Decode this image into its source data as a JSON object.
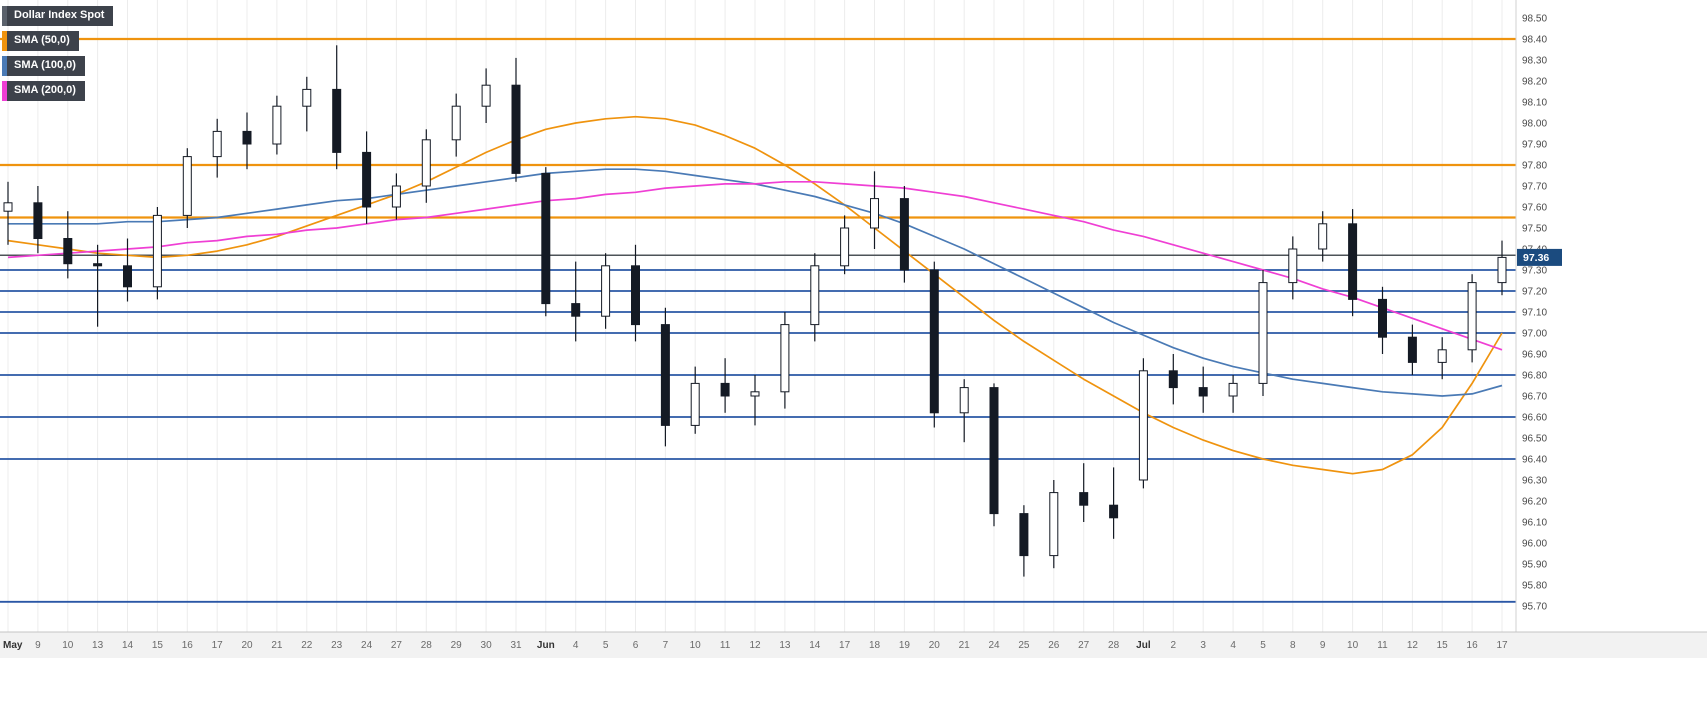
{
  "legend": {
    "instrument": {
      "label": "Dollar Index Spot",
      "color": "#5a616b"
    },
    "items": [
      {
        "label": "SMA (50,0)",
        "color": "#ef930e"
      },
      {
        "label": "SMA (100,0)",
        "color": "#4a7ab5"
      },
      {
        "label": "SMA (200,0)",
        "color": "#ef3fd4"
      }
    ]
  },
  "chart_data": {
    "type": "candlestick",
    "title": "Dollar Index Spot",
    "legend_position": "top-left",
    "grid": "vertical-only",
    "ylim": [
      95.57,
      98.59
    ],
    "current": {
      "price": "97.36",
      "line_price": 97.37
    },
    "colors": {
      "grid": "#ececec",
      "candle": "#141a24",
      "candle_up_fill": "#ffffff",
      "level_blue": "#2a57a5",
      "level_orange": "#ef930e",
      "current_line": "#4d5358",
      "badge_bg": "#1b4b7f",
      "badge_text": "#ffffff",
      "axis_text": "#4a4a4a"
    },
    "y_axis": {
      "labels": [
        "98.50",
        "98.40",
        "98.30",
        "98.20",
        "98.10",
        "98.00",
        "97.90",
        "97.80",
        "97.70",
        "97.60",
        "97.50",
        "97.40",
        "97.30",
        "97.20",
        "97.10",
        "97.00",
        "96.90",
        "96.80",
        "96.70",
        "96.60",
        "96.50",
        "96.40",
        "96.30",
        "96.20",
        "96.10",
        "96.00",
        "95.90",
        "95.80",
        "95.70"
      ]
    },
    "x_labels": [
      "May",
      "9",
      "10",
      "13",
      "14",
      "15",
      "16",
      "17",
      "20",
      "21",
      "22",
      "23",
      "24",
      "27",
      "28",
      "29",
      "30",
      "31",
      "Jun",
      "4",
      "5",
      "6",
      "7",
      "10",
      "11",
      "12",
      "13",
      "14",
      "17",
      "18",
      "19",
      "20",
      "21",
      "24",
      "25",
      "26",
      "27",
      "28",
      "Jul",
      "2",
      "3",
      "4",
      "5",
      "8",
      "9",
      "10",
      "11",
      "12",
      "15",
      "16",
      "17"
    ],
    "h_lines": [
      {
        "price": 98.4,
        "color": "#ef930e",
        "width": 2.2
      },
      {
        "price": 97.8,
        "color": "#ef930e",
        "width": 2.2
      },
      {
        "price": 97.55,
        "color": "#ef930e",
        "width": 2.2
      },
      {
        "price": 97.37,
        "color": "#4d5358",
        "width": 1.5
      },
      {
        "price": 97.3,
        "color": "#2a57a5",
        "width": 1.8
      },
      {
        "price": 97.2,
        "color": "#2a57a5",
        "width": 1.8
      },
      {
        "price": 97.1,
        "color": "#2a57a5",
        "width": 1.8
      },
      {
        "price": 97.0,
        "color": "#2a57a5",
        "width": 1.8
      },
      {
        "price": 96.8,
        "color": "#2a57a5",
        "width": 1.8
      },
      {
        "price": 96.6,
        "color": "#2a57a5",
        "width": 1.8
      },
      {
        "price": 96.4,
        "color": "#2a57a5",
        "width": 1.8
      },
      {
        "price": 95.72,
        "color": "#2a57a5",
        "width": 1.8
      }
    ],
    "candles": [
      {
        "d": "May 8",
        "o": 97.58,
        "h": 97.72,
        "l": 97.42,
        "c": 97.62
      },
      {
        "d": "May 9",
        "o": 97.62,
        "h": 97.7,
        "l": 97.38,
        "c": 97.45
      },
      {
        "d": "May 10",
        "o": 97.45,
        "h": 97.58,
        "l": 97.26,
        "c": 97.33
      },
      {
        "d": "May 13",
        "o": 97.33,
        "h": 97.42,
        "l": 97.03,
        "c": 97.32
      },
      {
        "d": "May 14",
        "o": 97.32,
        "h": 97.45,
        "l": 97.15,
        "c": 97.22
      },
      {
        "d": "May 15",
        "o": 97.22,
        "h": 97.6,
        "l": 97.16,
        "c": 97.56
      },
      {
        "d": "May 16",
        "o": 97.56,
        "h": 97.88,
        "l": 97.5,
        "c": 97.84
      },
      {
        "d": "May 17",
        "o": 97.84,
        "h": 98.02,
        "l": 97.74,
        "c": 97.96
      },
      {
        "d": "May 20",
        "o": 97.96,
        "h": 98.05,
        "l": 97.78,
        "c": 97.9
      },
      {
        "d": "May 21",
        "o": 97.9,
        "h": 98.13,
        "l": 97.85,
        "c": 98.08
      },
      {
        "d": "May 22",
        "o": 98.08,
        "h": 98.22,
        "l": 97.96,
        "c": 98.16
      },
      {
        "d": "May 23",
        "o": 98.16,
        "h": 98.37,
        "l": 97.78,
        "c": 97.86
      },
      {
        "d": "May 24",
        "o": 97.86,
        "h": 97.96,
        "l": 97.52,
        "c": 97.6
      },
      {
        "d": "May 27",
        "o": 97.6,
        "h": 97.76,
        "l": 97.54,
        "c": 97.7
      },
      {
        "d": "May 28",
        "o": 97.7,
        "h": 97.97,
        "l": 97.62,
        "c": 97.92
      },
      {
        "d": "May 29",
        "o": 97.92,
        "h": 98.14,
        "l": 97.84,
        "c": 98.08
      },
      {
        "d": "May 30",
        "o": 98.08,
        "h": 98.26,
        "l": 98.0,
        "c": 98.18
      },
      {
        "d": "May 31",
        "o": 98.18,
        "h": 98.31,
        "l": 97.72,
        "c": 97.76
      },
      {
        "d": "Jun 3",
        "o": 97.76,
        "h": 97.79,
        "l": 97.08,
        "c": 97.14
      },
      {
        "d": "Jun 4",
        "o": 97.14,
        "h": 97.34,
        "l": 96.96,
        "c": 97.08
      },
      {
        "d": "Jun 5",
        "o": 97.08,
        "h": 97.38,
        "l": 97.02,
        "c": 97.32
      },
      {
        "d": "Jun 6",
        "o": 97.32,
        "h": 97.42,
        "l": 96.96,
        "c": 97.04
      },
      {
        "d": "Jun 7",
        "o": 97.04,
        "h": 97.12,
        "l": 96.46,
        "c": 96.56
      },
      {
        "d": "Jun 10",
        "o": 96.56,
        "h": 96.84,
        "l": 96.52,
        "c": 96.76
      },
      {
        "d": "Jun 11",
        "o": 96.76,
        "h": 96.88,
        "l": 96.62,
        "c": 96.7
      },
      {
        "d": "Jun 12",
        "o": 96.7,
        "h": 96.8,
        "l": 96.56,
        "c": 96.72
      },
      {
        "d": "Jun 13",
        "o": 96.72,
        "h": 97.1,
        "l": 96.64,
        "c": 97.04
      },
      {
        "d": "Jun 14",
        "o": 97.04,
        "h": 97.38,
        "l": 96.96,
        "c": 97.32
      },
      {
        "d": "Jun 17",
        "o": 97.32,
        "h": 97.56,
        "l": 97.28,
        "c": 97.5
      },
      {
        "d": "Jun 18",
        "o": 97.5,
        "h": 97.77,
        "l": 97.4,
        "c": 97.64
      },
      {
        "d": "Jun 19",
        "o": 97.64,
        "h": 97.7,
        "l": 97.24,
        "c": 97.3
      },
      {
        "d": "Jun 20",
        "o": 97.3,
        "h": 97.34,
        "l": 96.55,
        "c": 96.62
      },
      {
        "d": "Jun 21",
        "o": 96.62,
        "h": 96.78,
        "l": 96.48,
        "c": 96.74
      },
      {
        "d": "Jun 24",
        "o": 96.74,
        "h": 96.76,
        "l": 96.08,
        "c": 96.14
      },
      {
        "d": "Jun 25",
        "o": 96.14,
        "h": 96.18,
        "l": 95.84,
        "c": 95.94
      },
      {
        "d": "Jun 26",
        "o": 95.94,
        "h": 96.3,
        "l": 95.88,
        "c": 96.24
      },
      {
        "d": "Jun 27",
        "o": 96.24,
        "h": 96.38,
        "l": 96.1,
        "c": 96.18
      },
      {
        "d": "Jun 28",
        "o": 96.18,
        "h": 96.36,
        "l": 96.02,
        "c": 96.12
      },
      {
        "d": "Jul 1",
        "o": 96.3,
        "h": 96.88,
        "l": 96.26,
        "c": 96.82
      },
      {
        "d": "Jul 2",
        "o": 96.82,
        "h": 96.9,
        "l": 96.66,
        "c": 96.74
      },
      {
        "d": "Jul 3",
        "o": 96.74,
        "h": 96.84,
        "l": 96.62,
        "c": 96.7
      },
      {
        "d": "Jul 4",
        "o": 96.7,
        "h": 96.8,
        "l": 96.62,
        "c": 96.76
      },
      {
        "d": "Jul 5",
        "o": 96.76,
        "h": 97.3,
        "l": 96.7,
        "c": 97.24
      },
      {
        "d": "Jul 8",
        "o": 97.24,
        "h": 97.46,
        "l": 97.16,
        "c": 97.4
      },
      {
        "d": "Jul 9",
        "o": 97.4,
        "h": 97.58,
        "l": 97.34,
        "c": 97.52
      },
      {
        "d": "Jul 10",
        "o": 97.52,
        "h": 97.59,
        "l": 97.08,
        "c": 97.16
      },
      {
        "d": "Jul 11",
        "o": 97.16,
        "h": 97.22,
        "l": 96.9,
        "c": 96.98
      },
      {
        "d": "Jul 12",
        "o": 96.98,
        "h": 97.04,
        "l": 96.8,
        "c": 96.86
      },
      {
        "d": "Jul 15",
        "o": 96.86,
        "h": 96.98,
        "l": 96.78,
        "c": 96.92
      },
      {
        "d": "Jul 16",
        "o": 96.92,
        "h": 97.28,
        "l": 96.86,
        "c": 97.24
      },
      {
        "d": "Jul 17",
        "o": 97.24,
        "h": 97.44,
        "l": 97.18,
        "c": 97.36
      }
    ],
    "sma_series": [
      {
        "id": "sma-50",
        "name": "SMA (50,0)",
        "color": "#ef930e",
        "values": [
          97.44,
          97.42,
          97.4,
          97.38,
          97.37,
          97.36,
          97.37,
          97.39,
          97.42,
          97.46,
          97.51,
          97.56,
          97.61,
          97.66,
          97.72,
          97.79,
          97.86,
          97.92,
          97.97,
          98.0,
          98.02,
          98.03,
          98.02,
          97.99,
          97.94,
          97.88,
          97.8,
          97.71,
          97.61,
          97.5,
          97.39,
          97.28,
          97.17,
          97.06,
          96.96,
          96.87,
          96.78,
          96.7,
          96.62,
          96.55,
          96.49,
          96.44,
          96.4,
          96.37,
          96.35,
          96.33,
          96.35,
          96.42,
          96.55,
          96.76,
          97.0
        ]
      },
      {
        "id": "sma-100",
        "name": "SMA (100,0)",
        "color": "#4a7ab5",
        "values": [
          97.52,
          97.52,
          97.52,
          97.52,
          97.53,
          97.53,
          97.54,
          97.55,
          97.57,
          97.59,
          97.61,
          97.63,
          97.64,
          97.66,
          97.68,
          97.7,
          97.72,
          97.74,
          97.76,
          97.77,
          97.78,
          97.78,
          97.77,
          97.75,
          97.73,
          97.71,
          97.68,
          97.65,
          97.61,
          97.57,
          97.52,
          97.46,
          97.4,
          97.33,
          97.26,
          97.19,
          97.12,
          97.05,
          96.99,
          96.93,
          96.88,
          96.84,
          96.81,
          96.78,
          96.76,
          96.74,
          96.72,
          96.71,
          96.7,
          96.71,
          96.75
        ]
      },
      {
        "id": "sma-200",
        "name": "SMA (200,0)",
        "color": "#ef3fd4",
        "values": [
          97.36,
          97.37,
          97.38,
          97.39,
          97.4,
          97.41,
          97.43,
          97.44,
          97.46,
          97.47,
          97.49,
          97.5,
          97.52,
          97.54,
          97.55,
          97.57,
          97.59,
          97.61,
          97.63,
          97.64,
          97.66,
          97.67,
          97.69,
          97.7,
          97.71,
          97.71,
          97.72,
          97.72,
          97.71,
          97.7,
          97.69,
          97.67,
          97.65,
          97.62,
          97.59,
          97.56,
          97.53,
          97.49,
          97.46,
          97.42,
          97.38,
          97.34,
          97.3,
          97.26,
          97.21,
          97.17,
          97.12,
          97.07,
          97.02,
          96.97,
          96.92
        ]
      }
    ]
  }
}
